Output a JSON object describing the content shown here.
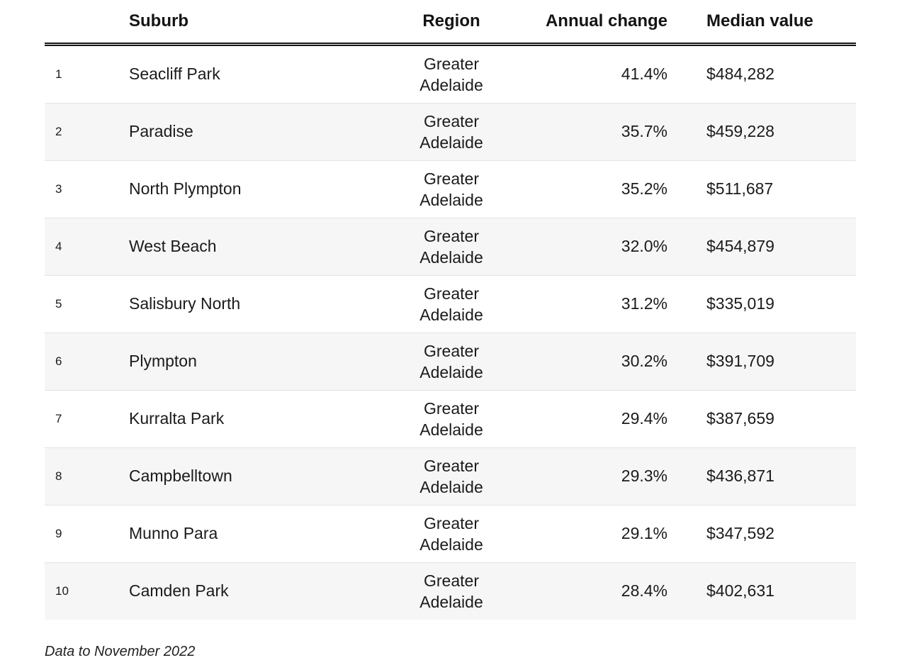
{
  "chart_data": {
    "type": "table",
    "columns": {
      "rank": "",
      "suburb": "Suburb",
      "region": "Region",
      "annual_change": "Annual change",
      "median_value": "Median value"
    },
    "rows": [
      {
        "rank": "1",
        "suburb": "Seacliff Park",
        "region": "Greater Adelaide",
        "annual_change": "41.4%",
        "median_value": "$484,282"
      },
      {
        "rank": "2",
        "suburb": "Paradise",
        "region": "Greater Adelaide",
        "annual_change": "35.7%",
        "median_value": "$459,228"
      },
      {
        "rank": "3",
        "suburb": "North Plympton",
        "region": "Greater Adelaide",
        "annual_change": "35.2%",
        "median_value": "$511,687"
      },
      {
        "rank": "4",
        "suburb": "West Beach",
        "region": "Greater Adelaide",
        "annual_change": "32.0%",
        "median_value": "$454,879"
      },
      {
        "rank": "5",
        "suburb": "Salisbury North",
        "region": "Greater Adelaide",
        "annual_change": "31.2%",
        "median_value": "$335,019"
      },
      {
        "rank": "6",
        "suburb": "Plympton",
        "region": "Greater Adelaide",
        "annual_change": "30.2%",
        "median_value": "$391,709"
      },
      {
        "rank": "7",
        "suburb": "Kurralta Park",
        "region": "Greater Adelaide",
        "annual_change": "29.4%",
        "median_value": "$387,659"
      },
      {
        "rank": "8",
        "suburb": "Campbelltown",
        "region": "Greater Adelaide",
        "annual_change": "29.3%",
        "median_value": "$436,871"
      },
      {
        "rank": "9",
        "suburb": "Munno Para",
        "region": "Greater Adelaide",
        "annual_change": "29.1%",
        "median_value": "$347,592"
      },
      {
        "rank": "10",
        "suburb": "Camden Park",
        "region": "Greater Adelaide",
        "annual_change": "28.4%",
        "median_value": "$402,631"
      }
    ],
    "note": "Data to November 2022",
    "layout": {
      "stripe_color": "#f6f6f6",
      "header_rule_color": "#141414",
      "row_divider_color": "#e4e4e4",
      "text_color": "#1b1b1b",
      "annual_change_align": "right",
      "region_align": "center"
    }
  }
}
